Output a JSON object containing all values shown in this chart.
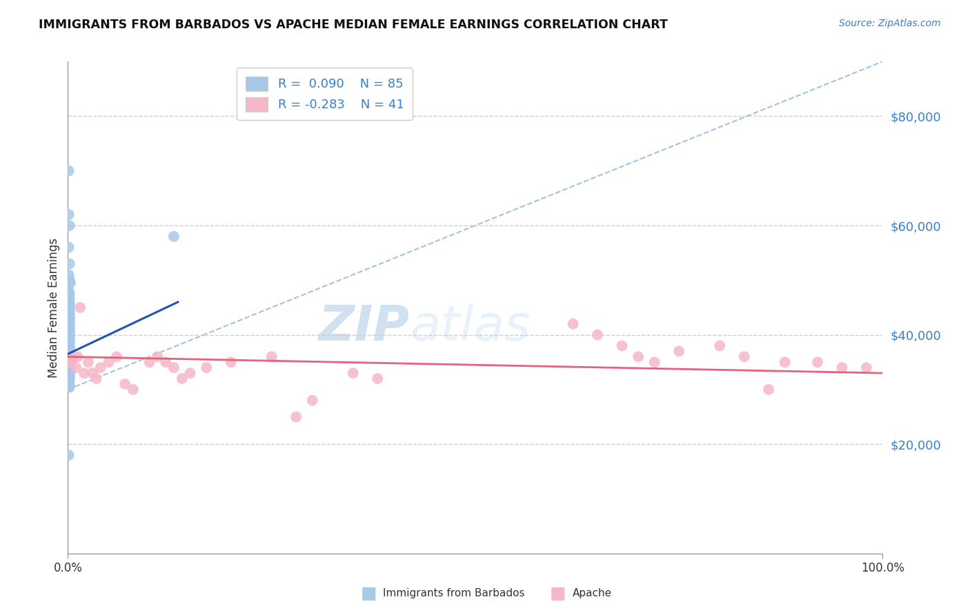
{
  "title": "IMMIGRANTS FROM BARBADOS VS APACHE MEDIAN FEMALE EARNINGS CORRELATION CHART",
  "source": "Source: ZipAtlas.com",
  "ylabel": "Median Female Earnings",
  "R_blue": 0.09,
  "N_blue": 85,
  "R_pink": -0.283,
  "N_pink": 41,
  "xlim": [
    0,
    1.0
  ],
  "ylim": [
    0,
    90000
  ],
  "color_blue": "#A8C8E8",
  "color_blue_line": "#2255AA",
  "color_pink": "#F5B8C8",
  "color_pink_line": "#E8607A",
  "color_gray_dash": "#99BBDD",
  "color_label": "#3A7DC9",
  "watermark_zip": "ZIP",
  "watermark_atlas": "atlas",
  "blue_x": [
    0.001,
    0.001,
    0.002,
    0.001,
    0.002,
    0.001,
    0.002,
    0.003,
    0.001,
    0.002,
    0.001,
    0.002,
    0.001,
    0.002,
    0.001,
    0.002,
    0.001,
    0.002,
    0.001,
    0.002,
    0.001,
    0.002,
    0.001,
    0.002,
    0.001,
    0.002,
    0.001,
    0.002,
    0.001,
    0.002,
    0.001,
    0.002,
    0.001,
    0.002,
    0.001,
    0.002,
    0.001,
    0.002,
    0.001,
    0.002,
    0.001,
    0.002,
    0.001,
    0.002,
    0.001,
    0.002,
    0.001,
    0.002,
    0.001,
    0.002,
    0.001,
    0.002,
    0.001,
    0.002,
    0.001,
    0.002,
    0.001,
    0.002,
    0.001,
    0.002,
    0.001,
    0.002,
    0.001,
    0.002,
    0.001,
    0.002,
    0.001,
    0.002,
    0.001,
    0.002,
    0.001,
    0.002,
    0.001,
    0.002,
    0.001,
    0.002,
    0.001,
    0.13,
    0.002,
    0.001,
    0.001,
    0.001,
    0.002,
    0.001,
    0.002
  ],
  "blue_y": [
    70000,
    62000,
    60000,
    56000,
    53000,
    51000,
    50000,
    49500,
    48000,
    47500,
    47000,
    46500,
    46000,
    45800,
    45500,
    45200,
    45000,
    44800,
    44500,
    44200,
    44000,
    43800,
    43500,
    43200,
    43000,
    42800,
    42500,
    42200,
    42000,
    41800,
    41500,
    41200,
    41000,
    40800,
    40600,
    40400,
    40200,
    40000,
    39800,
    39600,
    39400,
    39200,
    39000,
    38800,
    38600,
    38400,
    38200,
    38000,
    37800,
    37600,
    37400,
    37200,
    37000,
    36800,
    36600,
    36400,
    36200,
    36000,
    35800,
    35600,
    35400,
    35200,
    35000,
    34800,
    34600,
    34400,
    34200,
    34000,
    33800,
    33600,
    33400,
    33200,
    33000,
    32800,
    32600,
    32400,
    32200,
    58000,
    31800,
    31600,
    31400,
    18000,
    30800,
    30600,
    30400
  ],
  "pink_x": [
    0.002,
    0.004,
    0.006,
    0.01,
    0.012,
    0.015,
    0.02,
    0.025,
    0.03,
    0.035,
    0.04,
    0.05,
    0.06,
    0.07,
    0.08,
    0.1,
    0.11,
    0.12,
    0.13,
    0.14,
    0.15,
    0.17,
    0.2,
    0.25,
    0.28,
    0.3,
    0.35,
    0.38,
    0.62,
    0.65,
    0.68,
    0.7,
    0.72,
    0.75,
    0.8,
    0.83,
    0.86,
    0.88,
    0.92,
    0.95,
    0.98
  ],
  "pink_y": [
    35000,
    36000,
    35500,
    34000,
    36000,
    45000,
    33000,
    35000,
    33000,
    32000,
    34000,
    35000,
    36000,
    31000,
    30000,
    35000,
    36000,
    35000,
    34000,
    32000,
    33000,
    34000,
    35000,
    36000,
    25000,
    28000,
    33000,
    32000,
    42000,
    40000,
    38000,
    36000,
    35000,
    37000,
    38000,
    36000,
    30000,
    35000,
    35000,
    34000,
    34000
  ],
  "blue_trend_x": [
    0.0,
    0.135
  ],
  "blue_trend_y": [
    36500,
    46000
  ],
  "pink_trend_x": [
    0.0,
    1.0
  ],
  "pink_trend_y": [
    36000,
    33000
  ],
  "dash_line_x": [
    0.0,
    1.0
  ],
  "dash_line_y": [
    30000,
    90000
  ]
}
